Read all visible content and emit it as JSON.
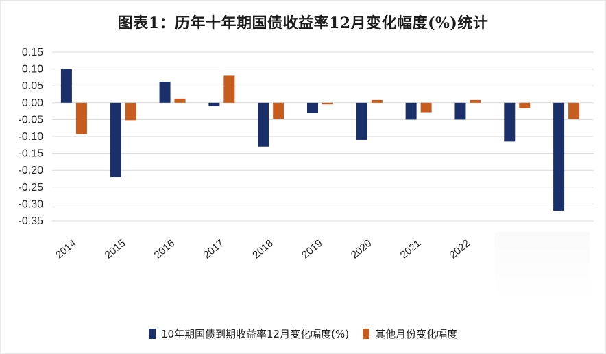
{
  "title": "图表1：历年十年期国债收益率12月变化幅度(%)统计",
  "colors": {
    "series1": "#1b2f6b",
    "series2": "#c65d1e",
    "grid": "#d9d9d9"
  },
  "chart_data": {
    "type": "bar",
    "categories": [
      "2014",
      "2015",
      "2016",
      "2017",
      "2018",
      "2019",
      "2020",
      "2021",
      "2022",
      "",
      ""
    ],
    "series": [
      {
        "name": "10年期国债到期收益率12月变化幅度(%)",
        "values": [
          0.1,
          -0.22,
          0.062,
          -0.01,
          -0.13,
          -0.03,
          -0.11,
          -0.05,
          -0.05,
          -0.115,
          -0.32
        ]
      },
      {
        "name": "其他月份变化幅度",
        "values": [
          -0.093,
          -0.052,
          0.012,
          0.08,
          -0.048,
          -0.005,
          0.008,
          -0.028,
          0.008,
          -0.016,
          -0.048
        ]
      }
    ],
    "yticks": [
      "0.15",
      "0.10",
      "0.05",
      "0.00",
      "-0.05",
      "-0.10",
      "-0.15",
      "-0.20",
      "-0.25",
      "-0.30",
      "-0.35"
    ],
    "ylim": [
      -0.35,
      0.15
    ],
    "grid": true,
    "legend_position": "bottom"
  }
}
